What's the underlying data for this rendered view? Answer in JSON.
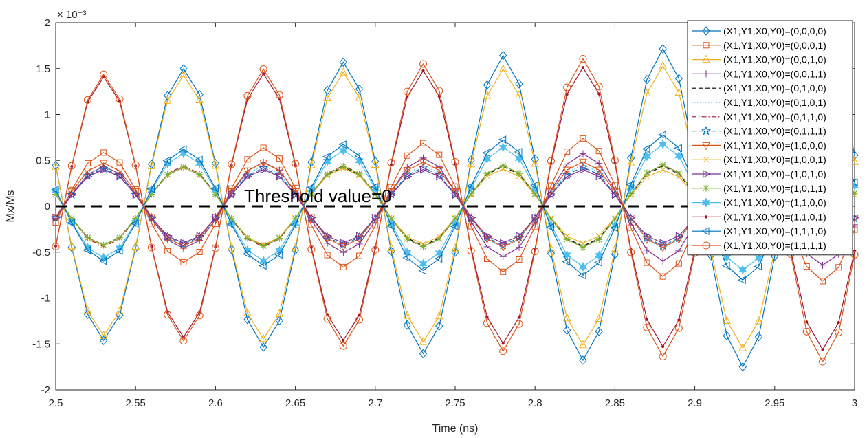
{
  "chart_data": {
    "type": "line",
    "xlabel": "Time (ns)",
    "ylabel": "Mx/Ms",
    "y_multiplier": "× 10⁻³",
    "xlim": [
      2.5,
      3.0
    ],
    "ylim": [
      -2,
      2
    ],
    "x_ticks": [
      "2.5",
      "2.55",
      "2.6",
      "2.65",
      "2.7",
      "2.75",
      "2.8",
      "2.85",
      "2.9",
      "2.95",
      "3"
    ],
    "y_ticks": [
      "2",
      "1.5",
      "1",
      "0.5",
      "0",
      "-0.5",
      "-1",
      "-1.5",
      "-2"
    ],
    "grid": false,
    "legend_position": "top-right",
    "annotation": {
      "text": "Threshold value=0",
      "y": 0
    },
    "x": [
      2.5,
      2.51,
      2.52,
      2.53,
      2.54,
      2.55,
      2.56,
      2.57,
      2.58,
      2.59,
      2.6,
      2.61,
      2.62,
      2.63,
      2.64,
      2.65,
      2.66,
      2.67,
      2.68,
      2.69,
      2.7,
      2.71,
      2.72,
      2.73,
      2.74,
      2.75,
      2.76,
      2.77,
      2.78,
      2.79,
      2.8,
      2.81,
      2.82,
      2.83,
      2.84,
      2.85,
      2.86,
      2.87,
      2.88,
      2.89,
      2.9,
      2.91,
      2.92,
      2.93,
      2.94,
      2.95,
      2.96,
      2.97,
      2.98,
      2.99,
      3.0
    ],
    "series": [
      {
        "name": "(X1,Y1,X0,Y0)=(0,0,0,0)",
        "color": "#0072BD",
        "marker": "diamond",
        "dash": "solid",
        "amp": 1.44,
        "growth": 0.25,
        "sign": -1,
        "yshift": 0
      },
      {
        "name": "(X1,Y1,X0,Y0)=(0,0,0,1)",
        "color": "#D95319",
        "marker": "square",
        "dash": "solid",
        "amp": 0.57,
        "growth": 0.45,
        "sign": 1,
        "yshift": 0
      },
      {
        "name": "(X1,Y1,X0,Y0)=(0,0,1,0)",
        "color": "#EDB120",
        "marker": "triangle-up",
        "dash": "solid",
        "amp": 1.4,
        "growth": 0.12,
        "sign": -1,
        "yshift": 0
      },
      {
        "name": "(X1,Y1,X0,Y0)=(0,0,1,1)",
        "color": "#7E2F8E",
        "marker": "plus",
        "dash": "solid",
        "amp": 0.42,
        "growth": 0.55,
        "sign": 1,
        "yshift": 0
      },
      {
        "name": "(X1,Y1,X0,Y0)=(0,1,0,0)",
        "color": "#000000",
        "marker": "none",
        "dash": "dashed",
        "amp": 0.42,
        "growth": 0.05,
        "sign": -1,
        "yshift": 0
      },
      {
        "name": "(X1,Y1,X0,Y0)=(0,1,0,1)",
        "color": "#4DBEEE",
        "marker": "none",
        "dash": "dotted",
        "amp": 0.43,
        "growth": 0.08,
        "sign": 1,
        "yshift": 0
      },
      {
        "name": "(X1,Y1,X0,Y0)=(0,1,1,0)",
        "color": "#A2142F",
        "marker": "none",
        "dash": "dashdot",
        "amp": 0.44,
        "growth": 0.02,
        "sign": -1,
        "yshift": 0
      },
      {
        "name": "(X1,Y1,X0,Y0)=(0,1,1,1)",
        "color": "#0072BD",
        "marker": "star",
        "dash": "dashed",
        "amp": 0.41,
        "growth": 0.06,
        "sign": 1,
        "yshift": 0
      },
      {
        "name": "(X1,Y1,X0,Y0)=(1,0,0,0)",
        "color": "#D95319",
        "marker": "triangle-down",
        "dash": "solid",
        "amp": 0.45,
        "growth": 0.05,
        "sign": 1,
        "yshift": 0.02
      },
      {
        "name": "(X1,Y1,X0,Y0)=(1,0,0,1)",
        "color": "#EDB120",
        "marker": "x",
        "dash": "solid",
        "amp": 0.43,
        "growth": -0.1,
        "sign": -1,
        "yshift": 0
      },
      {
        "name": "(X1,Y1,X0,Y0)=(1,0,1,0)",
        "color": "#7E2F8E",
        "marker": "triangle-right",
        "dash": "solid",
        "amp": 0.4,
        "growth": 0.0,
        "sign": 1,
        "yshift": 0
      },
      {
        "name": "(X1,Y1,X0,Y0)=(1,0,1,1)",
        "color": "#77AC30",
        "marker": "asterisk",
        "dash": "solid",
        "amp": 0.42,
        "growth": 0.1,
        "sign": -1,
        "yshift": 0
      },
      {
        "name": "(X1,Y1,X0,Y0)=(1,1,0,0)",
        "color": "#4DBEEE",
        "marker": "hexagram",
        "dash": "solid",
        "amp": 0.55,
        "growth": 0.3,
        "sign": -1,
        "yshift": 0
      },
      {
        "name": "(X1,Y1,X0,Y0)=(1,1,0,1)",
        "color": "#A2142F",
        "marker": "dot",
        "dash": "solid",
        "amp": 1.4,
        "growth": 0.12,
        "sign": 1,
        "yshift": 0
      },
      {
        "name": "(X1,Y1,X0,Y0)=(1,1,1,0)",
        "color": "#0072BD",
        "marker": "triangle-left",
        "dash": "solid",
        "amp": 0.58,
        "growth": 0.45,
        "sign": -1,
        "yshift": 0
      },
      {
        "name": "(X1,Y1,X0,Y0)=(1,1,1,1)",
        "color": "#D95319",
        "marker": "circle",
        "dash": "solid",
        "amp": 1.42,
        "growth": 0.2,
        "sign": 1,
        "yshift": 0
      }
    ]
  }
}
